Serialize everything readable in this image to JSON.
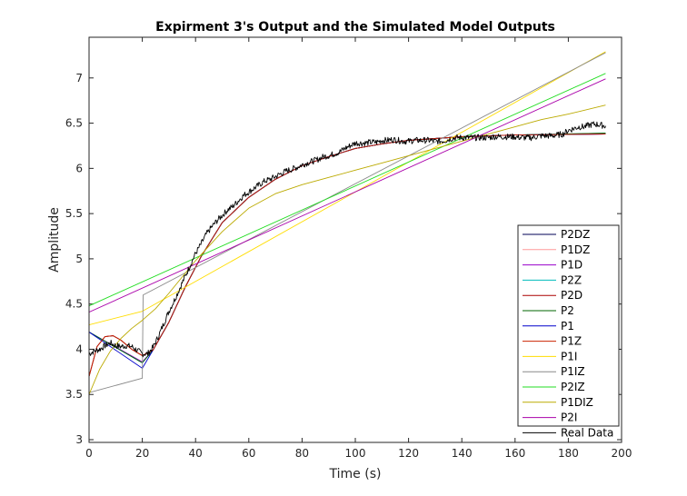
{
  "chart_data": {
    "type": "line",
    "title": "Expirment 3's Output and the Simulated Model Outputs",
    "xlabel": "Time (s)",
    "ylabel": "Amplitude",
    "xlim": [
      0,
      200
    ],
    "ylim": [
      2.97,
      7.45
    ],
    "xticks": [
      0,
      20,
      40,
      60,
      80,
      100,
      120,
      140,
      160,
      180,
      200
    ],
    "yticks": [
      3,
      3.5,
      4,
      4.5,
      5,
      5.5,
      6,
      6.5,
      7
    ],
    "grid": false,
    "legend_position": "bottom-right",
    "series": [
      {
        "name": "P2DZ",
        "color": "#000055",
        "points": [
          [
            0,
            3.7
          ],
          [
            3,
            4.03
          ],
          [
            6,
            4.14
          ],
          [
            9,
            4.15
          ],
          [
            12,
            4.1
          ],
          [
            16,
            4.0
          ],
          [
            20,
            3.93
          ],
          [
            24,
            3.99
          ],
          [
            30,
            4.3
          ],
          [
            36,
            4.68
          ],
          [
            42,
            5.02
          ],
          [
            50,
            5.4
          ],
          [
            60,
            5.68
          ],
          [
            70,
            5.88
          ],
          [
            80,
            6.03
          ],
          [
            90,
            6.13
          ],
          [
            100,
            6.22
          ],
          [
            110,
            6.27
          ],
          [
            120,
            6.31
          ],
          [
            130,
            6.33
          ],
          [
            140,
            6.35
          ],
          [
            160,
            6.37
          ],
          [
            194,
            6.38
          ]
        ]
      },
      {
        "name": "P1DZ",
        "color": "#ff9999",
        "points": [
          [
            0,
            4.19
          ],
          [
            20,
            3.86
          ],
          [
            24,
            3.99
          ],
          [
            30,
            4.3
          ],
          [
            36,
            4.68
          ],
          [
            42,
            5.02
          ],
          [
            50,
            5.4
          ],
          [
            60,
            5.68
          ],
          [
            70,
            5.88
          ],
          [
            80,
            6.03
          ],
          [
            90,
            6.13
          ],
          [
            100,
            6.22
          ],
          [
            110,
            6.27
          ],
          [
            120,
            6.31
          ],
          [
            130,
            6.33
          ],
          [
            140,
            6.35
          ],
          [
            160,
            6.37
          ],
          [
            194,
            6.38
          ]
        ]
      },
      {
        "name": "P1D",
        "color": "#9900cc",
        "points": [
          [
            0,
            4.19
          ],
          [
            20,
            3.86
          ],
          [
            24,
            3.99
          ],
          [
            30,
            4.3
          ],
          [
            36,
            4.68
          ],
          [
            42,
            5.02
          ],
          [
            50,
            5.4
          ],
          [
            60,
            5.68
          ],
          [
            70,
            5.88
          ],
          [
            80,
            6.03
          ],
          [
            90,
            6.13
          ],
          [
            100,
            6.22
          ],
          [
            110,
            6.27
          ],
          [
            120,
            6.31
          ],
          [
            130,
            6.33
          ],
          [
            140,
            6.35
          ],
          [
            160,
            6.37
          ],
          [
            194,
            6.38
          ]
        ]
      },
      {
        "name": "P2Z",
        "color": "#00bbbb",
        "points": [
          [
            0,
            4.19
          ],
          [
            20,
            3.85
          ],
          [
            24,
            3.99
          ],
          [
            30,
            4.3
          ],
          [
            36,
            4.68
          ],
          [
            42,
            5.02
          ],
          [
            50,
            5.4
          ],
          [
            60,
            5.68
          ],
          [
            70,
            5.88
          ],
          [
            80,
            6.03
          ],
          [
            90,
            6.13
          ],
          [
            100,
            6.22
          ],
          [
            110,
            6.27
          ],
          [
            120,
            6.31
          ],
          [
            130,
            6.33
          ],
          [
            140,
            6.35
          ],
          [
            160,
            6.37
          ],
          [
            194,
            6.39
          ]
        ]
      },
      {
        "name": "P2D",
        "color": "#aa0000",
        "points": [
          [
            0,
            3.7
          ],
          [
            3,
            4.03
          ],
          [
            6,
            4.14
          ],
          [
            9,
            4.15
          ],
          [
            12,
            4.1
          ],
          [
            16,
            4.0
          ],
          [
            20,
            3.93
          ],
          [
            24,
            3.99
          ],
          [
            30,
            4.3
          ],
          [
            36,
            4.68
          ],
          [
            42,
            5.02
          ],
          [
            50,
            5.4
          ],
          [
            60,
            5.68
          ],
          [
            70,
            5.88
          ],
          [
            80,
            6.03
          ],
          [
            90,
            6.13
          ],
          [
            100,
            6.22
          ],
          [
            110,
            6.27
          ],
          [
            120,
            6.31
          ],
          [
            130,
            6.33
          ],
          [
            140,
            6.35
          ],
          [
            160,
            6.37
          ],
          [
            194,
            6.38
          ]
        ]
      },
      {
        "name": "P2",
        "color": "#006600",
        "points": [
          [
            0,
            4.19
          ],
          [
            20,
            3.85
          ],
          [
            24,
            3.99
          ],
          [
            30,
            4.3
          ],
          [
            36,
            4.68
          ],
          [
            42,
            5.02
          ],
          [
            50,
            5.4
          ],
          [
            60,
            5.68
          ],
          [
            70,
            5.88
          ],
          [
            80,
            6.03
          ],
          [
            90,
            6.13
          ],
          [
            100,
            6.22
          ],
          [
            110,
            6.27
          ],
          [
            120,
            6.31
          ],
          [
            130,
            6.33
          ],
          [
            140,
            6.35
          ],
          [
            160,
            6.37
          ],
          [
            194,
            6.39
          ]
        ]
      },
      {
        "name": "P1",
        "color": "#0000cc",
        "points": [
          [
            0,
            4.19
          ],
          [
            20,
            3.79
          ],
          [
            24,
            3.99
          ],
          [
            30,
            4.3
          ],
          [
            36,
            4.68
          ],
          [
            42,
            5.02
          ],
          [
            50,
            5.4
          ],
          [
            60,
            5.68
          ],
          [
            70,
            5.88
          ],
          [
            80,
            6.03
          ],
          [
            90,
            6.13
          ],
          [
            100,
            6.22
          ],
          [
            110,
            6.27
          ],
          [
            120,
            6.31
          ],
          [
            130,
            6.33
          ],
          [
            140,
            6.35
          ],
          [
            160,
            6.37
          ],
          [
            194,
            6.38
          ]
        ]
      },
      {
        "name": "P1Z",
        "color": "#cc2200",
        "points": [
          [
            0,
            3.7
          ],
          [
            3,
            4.03
          ],
          [
            6,
            4.14
          ],
          [
            9,
            4.15
          ],
          [
            12,
            4.1
          ],
          [
            16,
            4.0
          ],
          [
            20,
            3.93
          ],
          [
            24,
            3.99
          ],
          [
            30,
            4.3
          ],
          [
            36,
            4.68
          ],
          [
            42,
            5.02
          ],
          [
            50,
            5.4
          ],
          [
            60,
            5.68
          ],
          [
            70,
            5.88
          ],
          [
            80,
            6.03
          ],
          [
            90,
            6.13
          ],
          [
            100,
            6.22
          ],
          [
            110,
            6.27
          ],
          [
            120,
            6.31
          ],
          [
            130,
            6.33
          ],
          [
            140,
            6.35
          ],
          [
            160,
            6.37
          ],
          [
            194,
            6.38
          ]
        ]
      },
      {
        "name": "P1I",
        "color": "#ffdd00",
        "points": [
          [
            0,
            4.27
          ],
          [
            20,
            4.42
          ],
          [
            194,
            7.29
          ]
        ]
      },
      {
        "name": "P1IZ",
        "color": "#888888",
        "points": [
          [
            0,
            3.52
          ],
          [
            20,
            3.68
          ],
          [
            20.3,
            4.6
          ],
          [
            194,
            7.28
          ]
        ]
      },
      {
        "name": "P2IZ",
        "color": "#22dd22",
        "points": [
          [
            0,
            4.48
          ],
          [
            194,
            7.05
          ]
        ]
      },
      {
        "name": "P1DIZ",
        "color": "#bbaa00",
        "points": [
          [
            0,
            3.5
          ],
          [
            4,
            3.78
          ],
          [
            8,
            3.98
          ],
          [
            12,
            4.12
          ],
          [
            16,
            4.23
          ],
          [
            20,
            4.32
          ],
          [
            25,
            4.45
          ],
          [
            30,
            4.62
          ],
          [
            40,
            4.98
          ],
          [
            50,
            5.3
          ],
          [
            60,
            5.56
          ],
          [
            70,
            5.72
          ],
          [
            80,
            5.82
          ],
          [
            90,
            5.9
          ],
          [
            100,
            5.98
          ],
          [
            110,
            6.06
          ],
          [
            120,
            6.14
          ],
          [
            130,
            6.22
          ],
          [
            140,
            6.3
          ],
          [
            150,
            6.38
          ],
          [
            160,
            6.46
          ],
          [
            170,
            6.54
          ],
          [
            180,
            6.6
          ],
          [
            194,
            6.7
          ]
        ]
      },
      {
        "name": "P2I",
        "color": "#aa00aa",
        "points": [
          [
            0,
            4.41
          ],
          [
            194,
            6.99
          ]
        ]
      },
      {
        "name": "Real Data",
        "color": "#000000",
        "points": [
          [
            0,
            3.95
          ],
          [
            2,
            3.98
          ],
          [
            4,
            4.0
          ],
          [
            6,
            4.04
          ],
          [
            8,
            4.07
          ],
          [
            10,
            4.04
          ],
          [
            12,
            4.03
          ],
          [
            14,
            4.04
          ],
          [
            16,
            4.03
          ],
          [
            18,
            3.99
          ],
          [
            20,
            3.95
          ],
          [
            22,
            3.95
          ],
          [
            24,
            4.02
          ],
          [
            26,
            4.14
          ],
          [
            28,
            4.28
          ],
          [
            30,
            4.42
          ],
          [
            32,
            4.54
          ],
          [
            34,
            4.67
          ],
          [
            36,
            4.8
          ],
          [
            38,
            4.93
          ],
          [
            40,
            5.06
          ],
          [
            42,
            5.16
          ],
          [
            44,
            5.27
          ],
          [
            46,
            5.35
          ],
          [
            48,
            5.42
          ],
          [
            50,
            5.48
          ],
          [
            52,
            5.54
          ],
          [
            54,
            5.58
          ],
          [
            56,
            5.64
          ],
          [
            58,
            5.7
          ],
          [
            60,
            5.74
          ],
          [
            62,
            5.78
          ],
          [
            64,
            5.82
          ],
          [
            66,
            5.86
          ],
          [
            68,
            5.88
          ],
          [
            70,
            5.91
          ],
          [
            72,
            5.94
          ],
          [
            74,
            5.97
          ],
          [
            76,
            5.99
          ],
          [
            78,
            6.01
          ],
          [
            80,
            6.04
          ],
          [
            82,
            6.06
          ],
          [
            84,
            6.08
          ],
          [
            86,
            6.1
          ],
          [
            88,
            6.13
          ],
          [
            90,
            6.14
          ],
          [
            92,
            6.16
          ],
          [
            94,
            6.18
          ],
          [
            96,
            6.22
          ],
          [
            98,
            6.25
          ],
          [
            100,
            6.28
          ],
          [
            102,
            6.28
          ],
          [
            104,
            6.28
          ],
          [
            106,
            6.29
          ],
          [
            108,
            6.29
          ],
          [
            110,
            6.31
          ],
          [
            112,
            6.31
          ],
          [
            114,
            6.32
          ],
          [
            116,
            6.31
          ],
          [
            118,
            6.3
          ],
          [
            120,
            6.3
          ],
          [
            122,
            6.31
          ],
          [
            124,
            6.31
          ],
          [
            126,
            6.31
          ],
          [
            128,
            6.31
          ],
          [
            130,
            6.3
          ],
          [
            132,
            6.3
          ],
          [
            134,
            6.31
          ],
          [
            136,
            6.33
          ],
          [
            138,
            6.34
          ],
          [
            140,
            6.34
          ],
          [
            142,
            6.34
          ],
          [
            144,
            6.34
          ],
          [
            146,
            6.34
          ],
          [
            148,
            6.34
          ],
          [
            150,
            6.34
          ],
          [
            152,
            6.35
          ],
          [
            154,
            6.35
          ],
          [
            156,
            6.35
          ],
          [
            158,
            6.35
          ],
          [
            160,
            6.35
          ],
          [
            162,
            6.34
          ],
          [
            164,
            6.34
          ],
          [
            166,
            6.34
          ],
          [
            168,
            6.35
          ],
          [
            170,
            6.36
          ],
          [
            172,
            6.36
          ],
          [
            174,
            6.36
          ],
          [
            176,
            6.37
          ],
          [
            178,
            6.38
          ],
          [
            180,
            6.42
          ],
          [
            182,
            6.44
          ],
          [
            184,
            6.46
          ],
          [
            186,
            6.46
          ],
          [
            188,
            6.48
          ],
          [
            190,
            6.49
          ],
          [
            192,
            6.48
          ],
          [
            194,
            6.47
          ]
        ]
      }
    ]
  }
}
